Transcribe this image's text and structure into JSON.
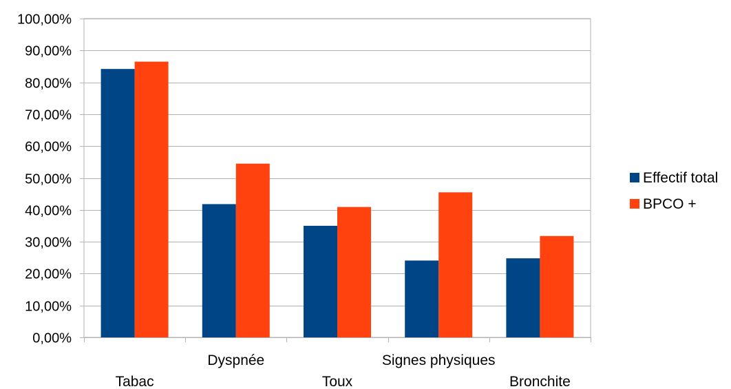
{
  "chart_data": {
    "type": "bar",
    "categories": [
      "Tabac",
      "Dyspnée",
      "Toux",
      "Signes physiques",
      "Bronchite"
    ],
    "series": [
      {
        "name": "Effectif total",
        "color": "#004586",
        "values": [
          84.2,
          41.8,
          35.0,
          24.1,
          24.8
        ]
      },
      {
        "name": "BPCO +",
        "color": "#ff420e",
        "values": [
          86.5,
          54.5,
          40.9,
          45.5,
          31.8
        ]
      }
    ],
    "ylim": [
      0,
      100
    ],
    "ytick_step": 10,
    "ytick_labels": [
      "0,00%",
      "10,00%",
      "20,00%",
      "30,00%",
      "40,00%",
      "50,00%",
      "60,00%",
      "70,00%",
      "80,00%",
      "90,00%",
      "100,00%"
    ],
    "grid": true,
    "legend_position": "right",
    "title": "",
    "xlabel": "",
    "ylabel": ""
  }
}
